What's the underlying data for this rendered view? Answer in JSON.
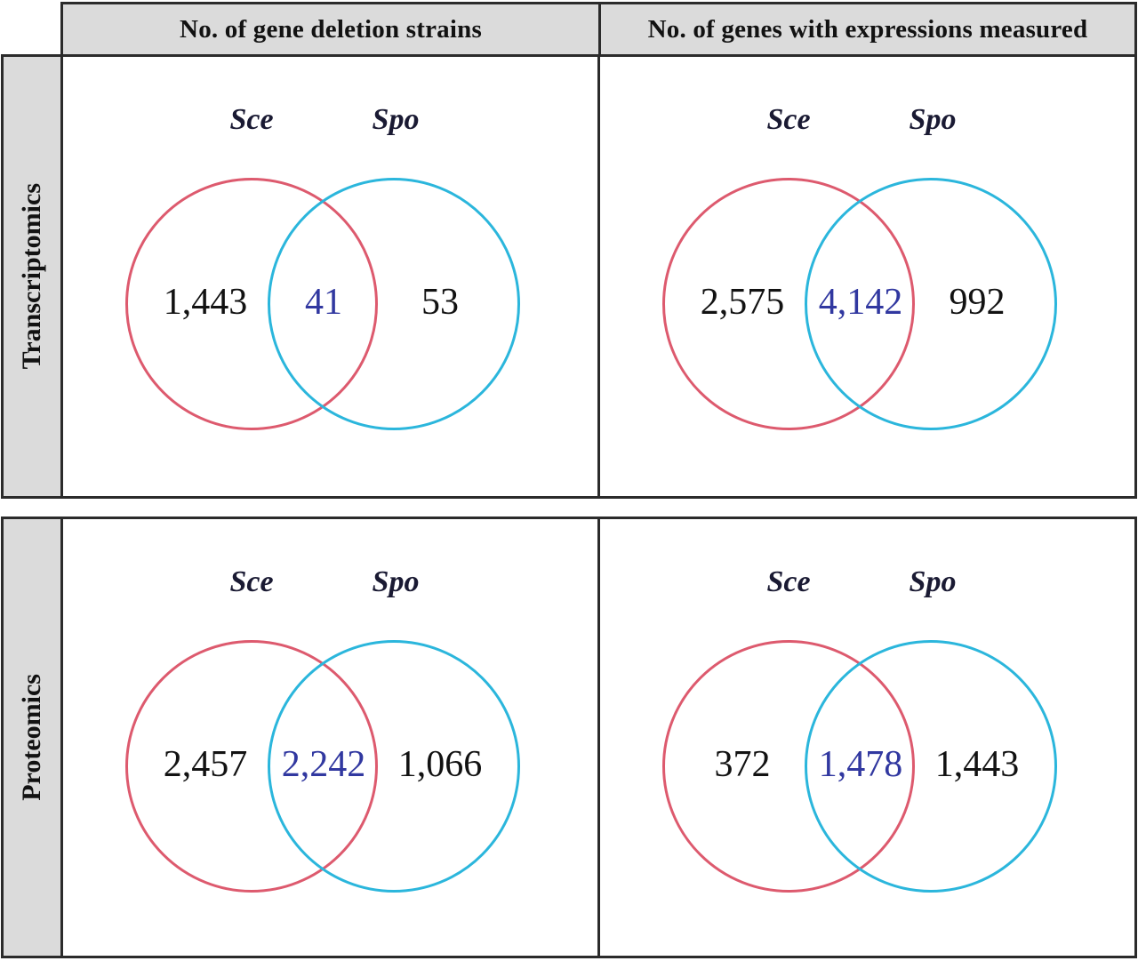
{
  "headers": {
    "col1": "No. of gene deletion strains",
    "col2": "No. of genes with expressions measured"
  },
  "species": {
    "sce": "Sce",
    "spo": "Spo"
  },
  "rows": [
    {
      "label": "Transcriptomics",
      "cells": [
        {
          "left": "1,443",
          "overlap": "41",
          "right": "53"
        },
        {
          "left": "2,575",
          "overlap": "4,142",
          "right": "992"
        }
      ]
    },
    {
      "label": "Proteomics",
      "cells": [
        {
          "left": "2,457",
          "overlap": "2,242",
          "right": "1,066"
        },
        {
          "left": "372",
          "overlap": "1,478",
          "right": "1,443"
        }
      ]
    }
  ],
  "venn_data": {
    "type": "venn",
    "set_labels": [
      "Sce",
      "Spo"
    ],
    "panels": [
      {
        "row": "Transcriptomics",
        "column": "No. of gene deletion strains",
        "sce_only": 1443,
        "overlap": 41,
        "spo_only": 53
      },
      {
        "row": "Transcriptomics",
        "column": "No. of genes with expressions measured",
        "sce_only": 2575,
        "overlap": 4142,
        "spo_only": 992
      },
      {
        "row": "Proteomics",
        "column": "No. of gene deletion strains",
        "sce_only": 2457,
        "overlap": 2242,
        "spo_only": 1066
      },
      {
        "row": "Proteomics",
        "column": "No. of genes with expressions measured",
        "sce_only": 372,
        "overlap": 1478,
        "spo_only": 1443
      }
    ]
  },
  "colors": {
    "sce_circle": "#dd5a6e",
    "spo_circle": "#2bb6dc",
    "overlap_text": "#3138a0",
    "number_text": "#121212",
    "species_label_text": "#1a1a33",
    "panel_gray": "#dbdbdb",
    "border": "#2b2b2b"
  }
}
